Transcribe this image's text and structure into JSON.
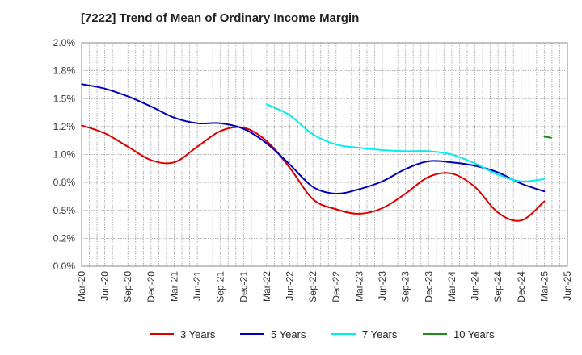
{
  "title": "[7222]  Trend of Mean of Ordinary Income Margin",
  "chart_data": {
    "type": "line",
    "title": "[7222]  Trend of Mean of Ordinary Income Margin",
    "xlabel": "",
    "ylabel": "",
    "grid": true,
    "legend_position": "bottom",
    "ylim": [
      0,
      0.02
    ],
    "y_ticks": [
      0,
      0.0025,
      0.005,
      0.0075,
      0.01,
      0.0125,
      0.015,
      0.0175,
      0.02
    ],
    "y_tick_labels": [
      "0.0%",
      "0.2%",
      "0.5%",
      "0.8%",
      "1.0%",
      "1.2%",
      "1.5%",
      "1.8%",
      "2.0%"
    ],
    "x_tick_labels": [
      "Mar-20",
      "Jun-20",
      "Sep-20",
      "Dec-20",
      "Mar-21",
      "Jun-21",
      "Sep-21",
      "Dec-21",
      "Mar-22",
      "Jun-22",
      "Sep-22",
      "Dec-22",
      "Mar-23",
      "Jun-23",
      "Sep-23",
      "Dec-23",
      "Mar-24",
      "Jun-24",
      "Sep-24",
      "Dec-24",
      "Mar-25",
      "Jun-25"
    ],
    "series": [
      {
        "name": "3 Years",
        "color": "#dd0000",
        "points": [
          [
            "Mar-20",
            0.0126
          ],
          [
            "Jun-20",
            0.0119
          ],
          [
            "Sep-20",
            0.0107
          ],
          [
            "Dec-20",
            0.0095
          ],
          [
            "Mar-21",
            0.0093
          ],
          [
            "Jun-21",
            0.0107
          ],
          [
            "Sep-21",
            0.0121
          ],
          [
            "Dec-21",
            0.0124
          ],
          [
            "Mar-22",
            0.0112
          ],
          [
            "Jun-22",
            0.0088
          ],
          [
            "Sep-22",
            0.006
          ],
          [
            "Dec-22",
            0.0051
          ],
          [
            "Mar-23",
            0.0047
          ],
          [
            "Jun-23",
            0.0052
          ],
          [
            "Sep-23",
            0.0065
          ],
          [
            "Dec-23",
            0.008
          ],
          [
            "Mar-24",
            0.0083
          ],
          [
            "Jun-24",
            0.0071
          ],
          [
            "Sep-24",
            0.0048
          ],
          [
            "Dec-24",
            0.0041
          ],
          [
            "Mar-25",
            0.0058
          ]
        ]
      },
      {
        "name": "5 Years",
        "color": "#0000bb",
        "points": [
          [
            "Mar-20",
            0.0163
          ],
          [
            "Jun-20",
            0.0159
          ],
          [
            "Sep-20",
            0.0152
          ],
          [
            "Dec-20",
            0.0143
          ],
          [
            "Mar-21",
            0.0133
          ],
          [
            "Jun-21",
            0.0128
          ],
          [
            "Sep-21",
            0.0128
          ],
          [
            "Dec-21",
            0.0123
          ],
          [
            "Mar-22",
            0.011
          ],
          [
            "Jun-22",
            0.0091
          ],
          [
            "Sep-22",
            0.0071
          ],
          [
            "Dec-22",
            0.0065
          ],
          [
            "Mar-23",
            0.0069
          ],
          [
            "Jun-23",
            0.0076
          ],
          [
            "Sep-23",
            0.0087
          ],
          [
            "Dec-23",
            0.0094
          ],
          [
            "Mar-24",
            0.0093
          ],
          [
            "Jun-24",
            0.009
          ],
          [
            "Sep-24",
            0.0084
          ],
          [
            "Dec-24",
            0.0074
          ],
          [
            "Mar-25",
            0.0067
          ]
        ]
      },
      {
        "name": "7 Years",
        "color": "#00eeee",
        "points": [
          [
            "Mar-22",
            0.0145
          ],
          [
            "Jun-22",
            0.0135
          ],
          [
            "Sep-22",
            0.0118
          ],
          [
            "Dec-22",
            0.0109
          ],
          [
            "Mar-23",
            0.0106
          ],
          [
            "Jun-23",
            0.0104
          ],
          [
            "Sep-23",
            0.0103
          ],
          [
            "Dec-23",
            0.0103
          ],
          [
            "Mar-24",
            0.01
          ],
          [
            "Jun-24",
            0.0092
          ],
          [
            "Sep-24",
            0.0082
          ],
          [
            "Dec-24",
            0.0076
          ],
          [
            "Mar-25",
            0.0078
          ]
        ]
      },
      {
        "name": "10 Years",
        "color": "#228b22",
        "points": [
          [
            "Mar-25",
            0.0116
          ],
          [
            "Mar-25+",
            0.0115
          ]
        ]
      }
    ]
  }
}
